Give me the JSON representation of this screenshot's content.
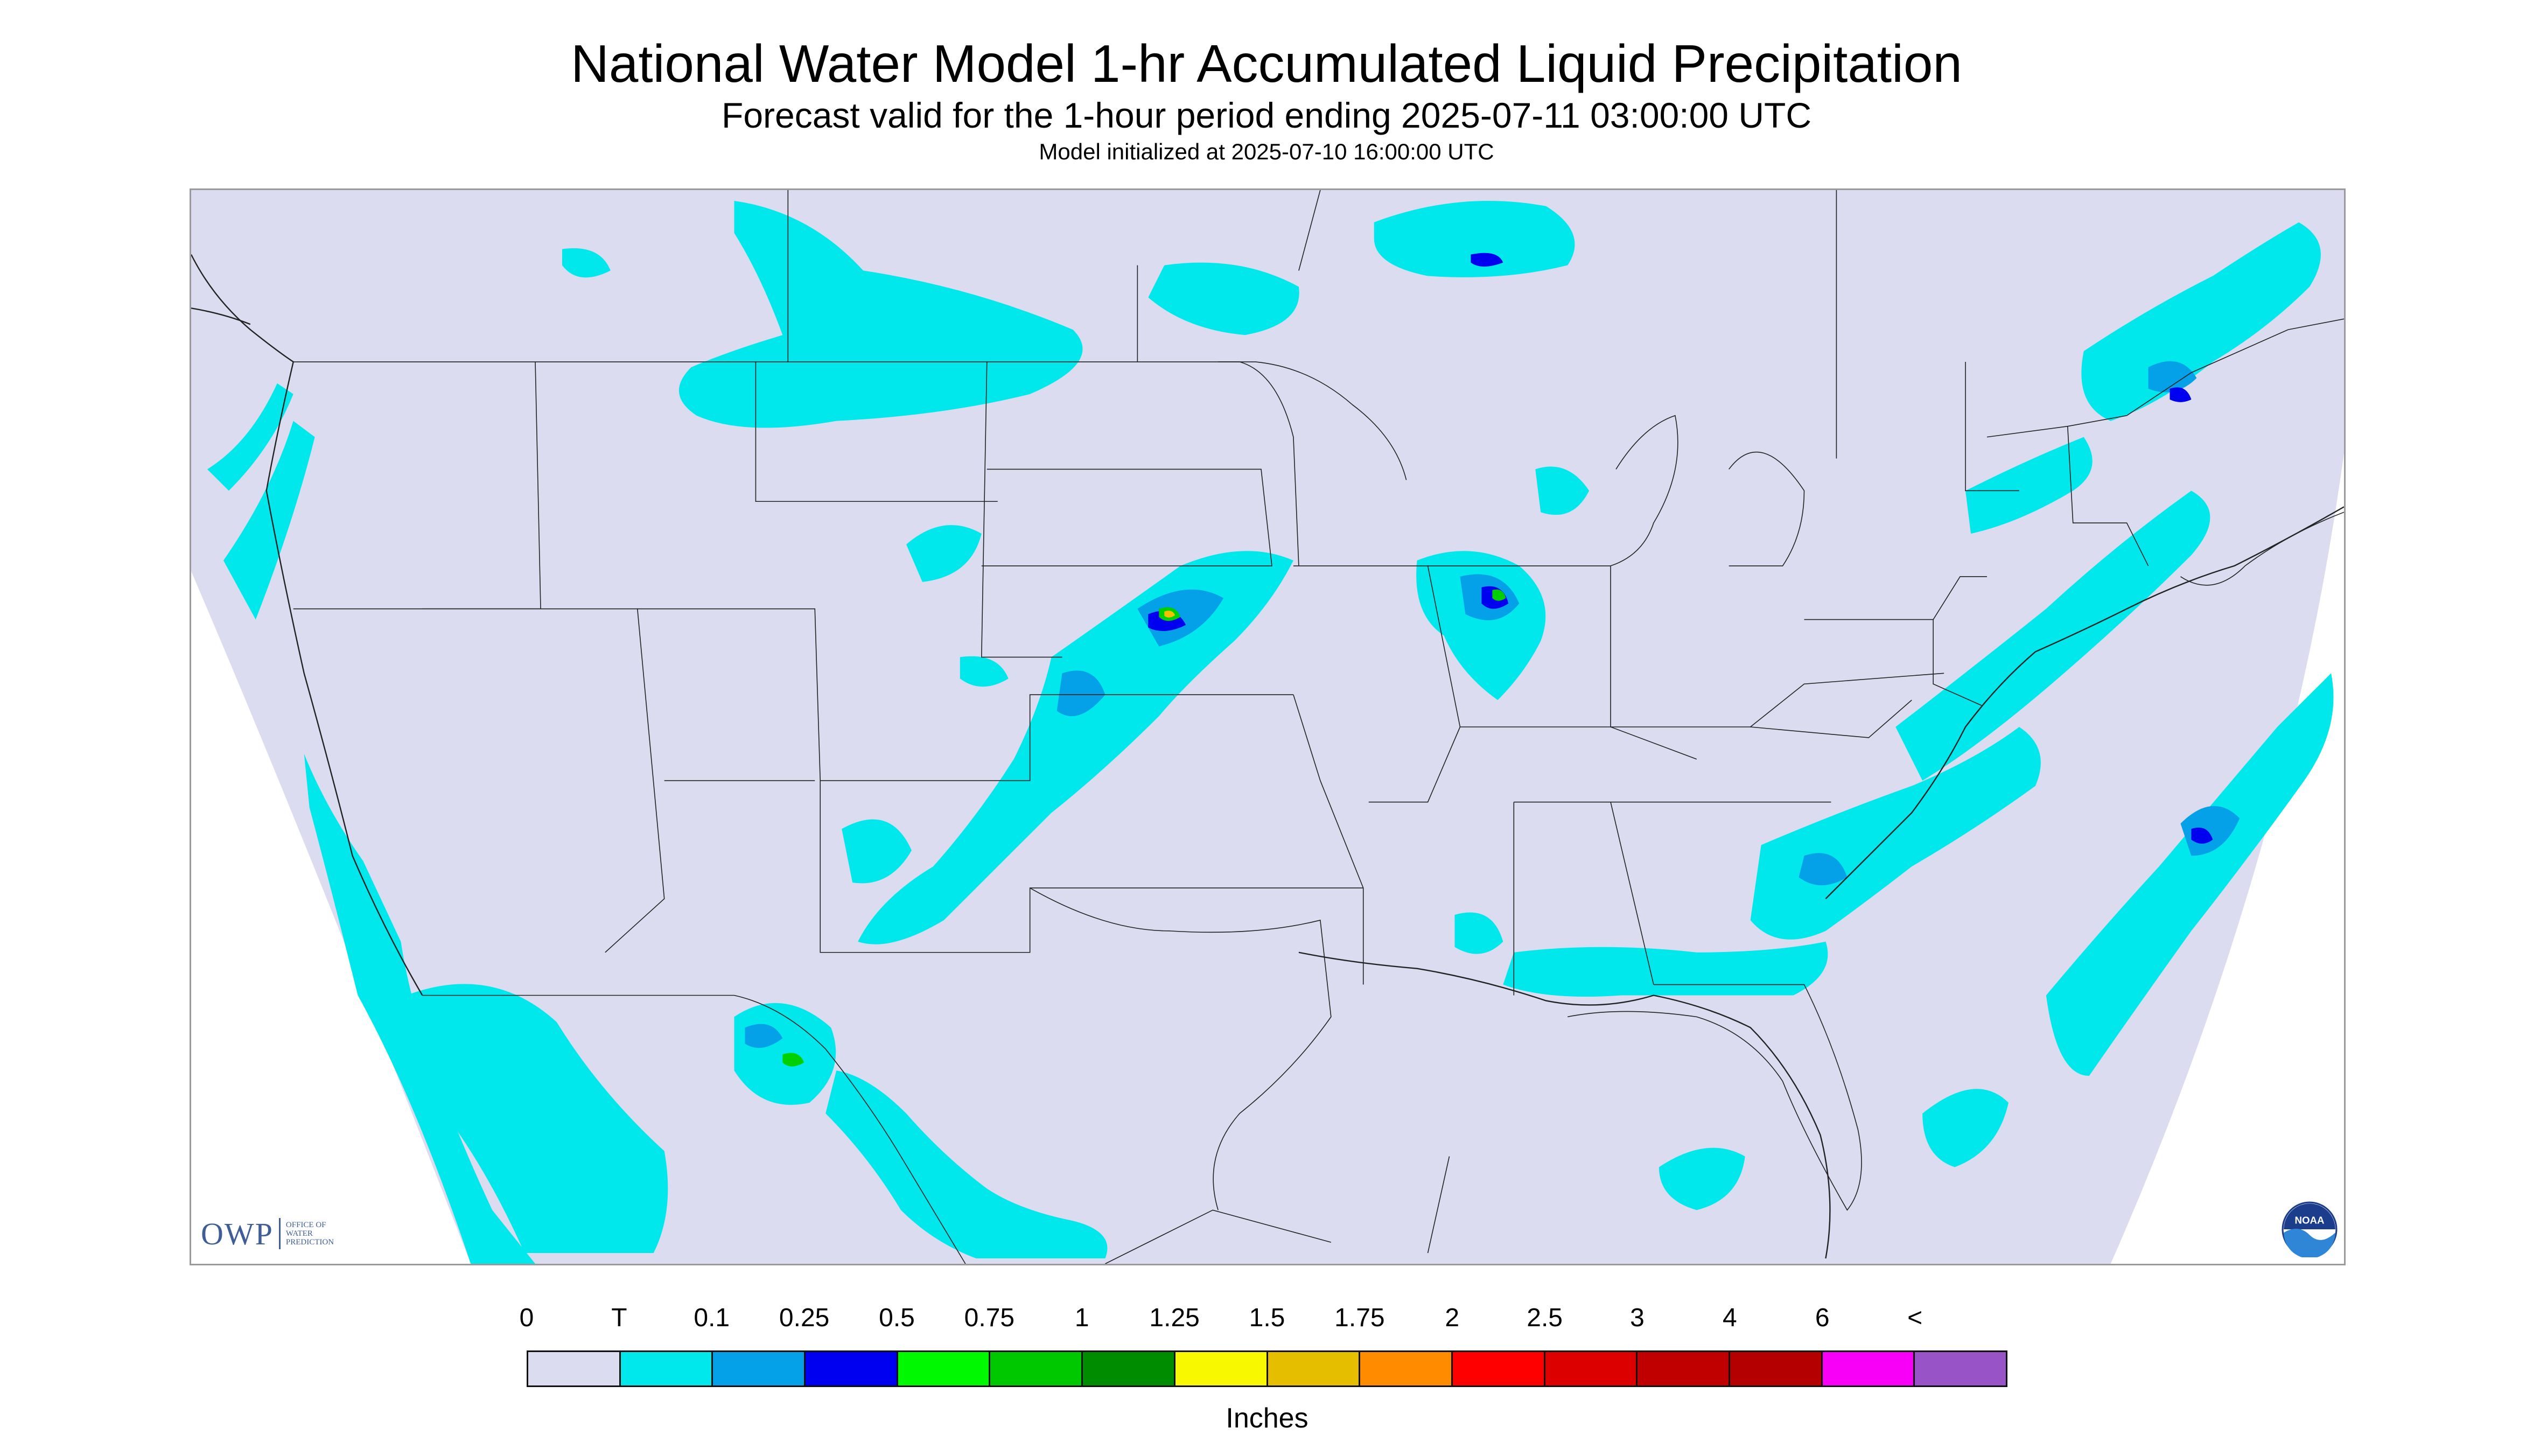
{
  "header": {
    "title": "National Water Model 1-hr Accumulated Liquid Precipitation",
    "subtitle": "Forecast valid for the 1-hour period ending 2025-07-11 03:00:00 UTC",
    "init_line": "Model initialized at 2025-07-10 16:00:00 UTC"
  },
  "map": {
    "domain_fill": "#dcdcf0",
    "boundary_color": "#222222",
    "precip_colors": {
      "trace": "#00e8ec",
      "light": "#04a0e8",
      "moderate": "#0000f0",
      "heavy": "#00d000",
      "very_heavy": "#f0c000"
    }
  },
  "logos": {
    "owp_mark": "OWP",
    "owp_text": [
      "Office of",
      "Water",
      "Prediction"
    ],
    "noaa_text": "NOAA",
    "noaa_icon": "noaa-seal-icon"
  },
  "legend": {
    "unit": "Inches",
    "labels": [
      "0",
      "T",
      "0.1",
      "0.25",
      "0.5",
      "0.75",
      "1",
      "1.25",
      "1.5",
      "1.75",
      "2",
      "2.5",
      "3",
      "4",
      "6",
      "<"
    ],
    "colors": [
      "#dcdcf0",
      "#00e8ec",
      "#04a0e8",
      "#0000f0",
      "#00f800",
      "#00c800",
      "#008c00",
      "#f8f800",
      "#e6be00",
      "#ff8c00",
      "#ff0000",
      "#dc0000",
      "#c00000",
      "#b40000",
      "#f800f8",
      "#9854c6"
    ]
  }
}
